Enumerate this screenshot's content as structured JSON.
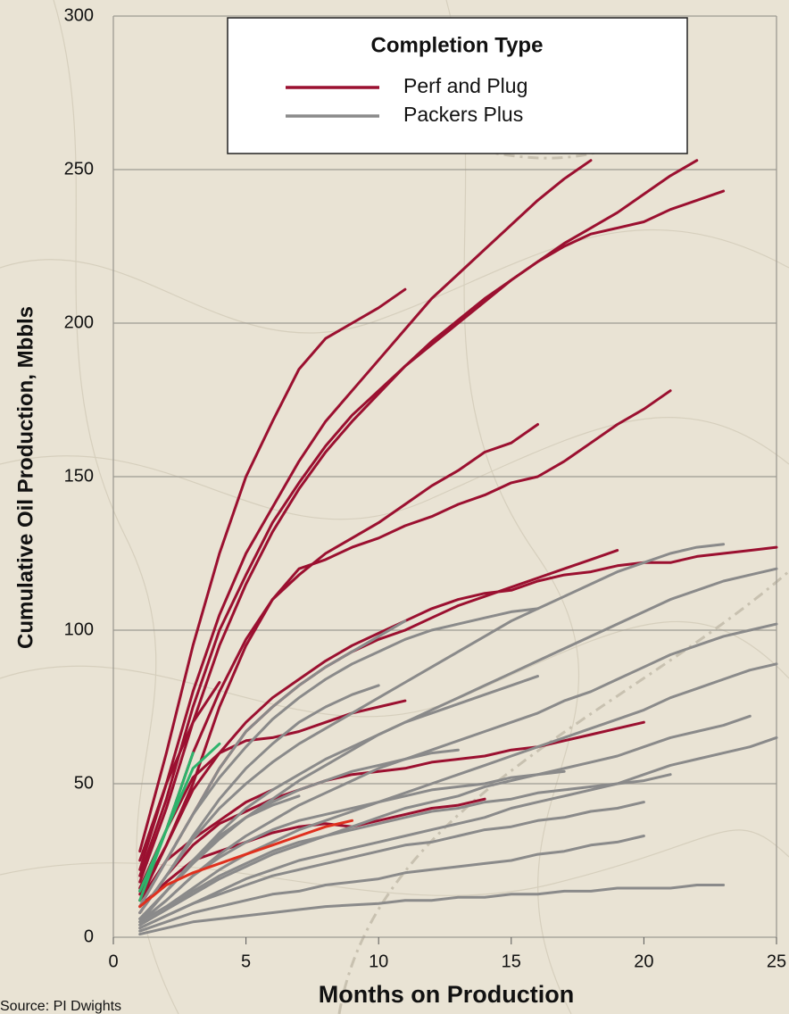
{
  "chart_data": {
    "type": "line",
    "y_label": "Cumulative Oil Production, Mbbls",
    "x_label": "Months on Production",
    "source": "Source: PI Dwights",
    "legend_title": "Completion Type",
    "xlim": [
      0,
      25
    ],
    "xticks": [
      0,
      5,
      10,
      15,
      20,
      25
    ],
    "ylim": [
      0,
      300
    ],
    "yticks": [
      0,
      50,
      100,
      150,
      200,
      250,
      300
    ],
    "grid": true,
    "x": [
      1,
      2,
      3,
      4,
      5,
      6,
      7,
      8,
      9,
      10,
      11,
      12,
      13,
      14,
      15,
      16,
      17,
      18,
      19,
      20,
      21,
      22,
      23,
      24,
      25
    ],
    "series": [
      {
        "name": "Perf and Plug",
        "color": "#9b1030",
        "lines": [
          [
            28,
            60,
            95,
            125,
            150,
            168,
            185,
            195,
            200,
            205,
            211,
            null,
            null,
            null,
            null,
            null,
            null,
            null,
            null,
            null,
            null,
            null,
            null,
            null,
            null
          ],
          [
            22,
            50,
            80,
            105,
            125,
            140,
            155,
            168,
            178,
            188,
            198,
            208,
            216,
            224,
            232,
            240,
            247,
            253,
            null,
            null,
            null,
            null,
            null,
            null,
            null
          ],
          [
            20,
            45,
            75,
            100,
            118,
            135,
            148,
            160,
            170,
            178,
            186,
            193,
            200,
            207,
            214,
            220,
            226,
            231,
            236,
            242,
            248,
            253,
            null,
            null,
            null
          ],
          [
            18,
            42,
            70,
            95,
            115,
            132,
            146,
            158,
            168,
            177,
            186,
            194,
            201,
            208,
            214,
            220,
            225,
            229,
            231,
            233,
            237,
            240,
            243,
            null,
            null
          ],
          [
            15,
            35,
            60,
            80,
            97,
            110,
            118,
            125,
            130,
            135,
            141,
            147,
            152,
            158,
            161,
            167,
            null,
            null,
            null,
            null,
            null,
            null,
            null,
            null,
            null
          ],
          [
            14,
            30,
            50,
            75,
            95,
            110,
            120,
            123,
            127,
            130,
            134,
            137,
            141,
            144,
            148,
            150,
            155,
            161,
            167,
            172,
            178,
            null,
            null,
            null,
            null
          ],
          [
            12,
            30,
            48,
            60,
            70,
            78,
            84,
            90,
            95,
            99,
            103,
            107,
            110,
            112,
            113,
            116,
            118,
            119,
            121,
            122,
            122,
            124,
            125,
            126,
            127
          ],
          [
            10,
            25,
            40,
            55,
            67,
            75,
            82,
            88,
            93,
            97,
            100,
            104,
            108,
            111,
            114,
            117,
            120,
            123,
            126,
            null,
            null,
            null,
            null,
            null,
            null
          ],
          [
            16,
            35,
            52,
            60,
            64,
            65,
            67,
            70,
            73,
            75,
            77,
            null,
            null,
            null,
            null,
            null,
            null,
            null,
            null,
            null,
            null,
            null,
            null,
            null,
            null
          ],
          [
            8,
            20,
            30,
            37,
            41,
            45,
            48,
            51,
            53,
            54,
            55,
            57,
            58,
            59,
            61,
            62,
            64,
            66,
            68,
            70,
            null,
            null,
            null,
            null,
            null
          ],
          [
            10,
            18,
            25,
            28,
            31,
            34,
            36,
            37,
            36,
            38,
            40,
            42,
            43,
            45,
            null,
            null,
            null,
            null,
            null,
            null,
            null,
            null,
            null,
            null,
            null
          ],
          [
            12,
            25,
            32,
            38,
            44,
            48,
            null,
            null,
            null,
            null,
            null,
            null,
            null,
            null,
            null,
            null,
            null,
            null,
            null,
            null,
            null,
            null,
            null,
            null,
            null
          ],
          [
            25,
            50,
            70,
            83,
            null,
            null,
            null,
            null,
            null,
            null,
            null,
            null,
            null,
            null,
            null,
            null,
            null,
            null,
            null,
            null,
            null,
            null,
            null,
            null,
            null
          ]
        ]
      },
      {
        "name": "Packers Plus",
        "color": "#8a8a8a",
        "lines": [
          [
            8,
            20,
            32,
            42,
            50,
            57,
            63,
            68,
            73,
            78,
            83,
            88,
            93,
            98,
            103,
            107,
            111,
            115,
            119,
            122,
            125,
            127,
            128,
            null,
            null
          ],
          [
            6,
            15,
            24,
            32,
            39,
            45,
            51,
            56,
            61,
            66,
            70,
            74,
            78,
            82,
            86,
            90,
            94,
            98,
            102,
            106,
            110,
            113,
            116,
            118,
            120
          ],
          [
            5,
            12,
            20,
            27,
            33,
            38,
            43,
            47,
            51,
            55,
            58,
            61,
            64,
            67,
            70,
            73,
            77,
            80,
            84,
            88,
            92,
            95,
            98,
            100,
            102
          ],
          [
            10,
            25,
            40,
            52,
            62,
            71,
            78,
            84,
            89,
            93,
            97,
            100,
            102,
            104,
            106,
            107,
            null,
            null,
            null,
            null,
            null,
            null,
            null,
            null,
            null
          ],
          [
            10,
            25,
            40,
            55,
            67,
            75,
            82,
            88,
            93,
            98,
            103,
            null,
            null,
            null,
            null,
            null,
            null,
            null,
            null,
            null,
            null,
            null,
            null,
            null,
            null
          ],
          [
            8,
            20,
            33,
            45,
            55,
            63,
            70,
            75,
            79,
            82,
            null,
            null,
            null,
            null,
            null,
            null,
            null,
            null,
            null,
            null,
            null,
            null,
            null,
            null,
            null
          ],
          [
            6,
            15,
            25,
            34,
            42,
            48,
            53,
            58,
            62,
            66,
            70,
            73,
            76,
            79,
            82,
            85,
            null,
            null,
            null,
            null,
            null,
            null,
            null,
            null,
            null
          ],
          [
            5,
            10,
            16,
            22,
            27,
            31,
            35,
            38,
            41,
            44,
            47,
            50,
            53,
            56,
            59,
            62,
            65,
            68,
            71,
            74,
            78,
            81,
            84,
            87,
            89
          ],
          [
            4,
            9,
            14,
            19,
            23,
            27,
            30,
            33,
            36,
            39,
            42,
            44,
            46,
            49,
            51,
            53,
            55,
            57,
            59,
            62,
            65,
            67,
            69,
            72,
            null
          ],
          [
            3,
            7,
            11,
            15,
            19,
            22,
            25,
            27,
            29,
            31,
            33,
            35,
            37,
            39,
            42,
            44,
            46,
            48,
            50,
            53,
            56,
            58,
            60,
            62,
            65
          ],
          [
            5,
            12,
            20,
            26,
            31,
            35,
            38,
            40,
            42,
            44,
            46,
            48,
            49,
            50,
            52,
            53,
            54,
            null,
            null,
            null,
            null,
            null,
            null,
            null,
            null
          ],
          [
            4,
            9,
            15,
            20,
            24,
            28,
            31,
            33,
            35,
            37,
            39,
            41,
            42,
            44,
            45,
            47,
            48,
            49,
            50,
            51,
            53,
            null,
            null,
            null,
            null
          ],
          [
            3,
            7,
            11,
            14,
            17,
            20,
            22,
            24,
            26,
            28,
            30,
            31,
            33,
            35,
            36,
            38,
            39,
            41,
            42,
            44,
            null,
            null,
            null,
            null,
            null
          ],
          [
            2,
            5,
            8,
            10,
            12,
            14,
            15,
            17,
            18,
            19,
            21,
            22,
            23,
            24,
            25,
            27,
            28,
            30,
            31,
            33,
            null,
            null,
            null,
            null,
            null
          ],
          [
            1,
            3,
            5,
            6,
            7,
            8,
            9,
            10,
            10.5,
            11,
            12,
            12,
            13,
            13,
            14,
            14,
            15,
            15,
            16,
            16,
            16,
            17,
            17,
            null,
            null
          ],
          [
            6,
            15,
            25,
            33,
            39,
            44,
            48,
            51,
            54,
            56,
            58,
            60,
            61,
            null,
            null,
            null,
            null,
            null,
            null,
            null,
            null,
            null,
            null,
            null,
            null
          ],
          [
            5,
            15,
            25,
            33,
            39,
            43,
            46,
            null,
            null,
            null,
            null,
            null,
            null,
            null,
            null,
            null,
            null,
            null,
            null,
            null,
            null,
            null,
            null,
            null,
            null
          ]
        ]
      },
      {
        "color": "#2db36b",
        "lines": [
          [
            12,
            35,
            55,
            63,
            null,
            null,
            null,
            null,
            null,
            null,
            null,
            null,
            null,
            null,
            null,
            null,
            null,
            null,
            null,
            null,
            null,
            null,
            null,
            null,
            null
          ],
          [
            15,
            35,
            60,
            null,
            null,
            null,
            null,
            null,
            null,
            null,
            null,
            null,
            null,
            null,
            null,
            null,
            null,
            null,
            null,
            null,
            null,
            null,
            null,
            null,
            null
          ]
        ]
      },
      {
        "color": "#e0301e",
        "lines": [
          [
            10,
            17,
            21,
            24,
            27,
            30,
            33,
            36,
            38,
            null,
            null,
            null,
            null,
            null,
            null,
            null,
            null,
            null,
            null,
            null,
            null,
            null,
            null,
            null,
            null
          ]
        ]
      }
    ]
  }
}
